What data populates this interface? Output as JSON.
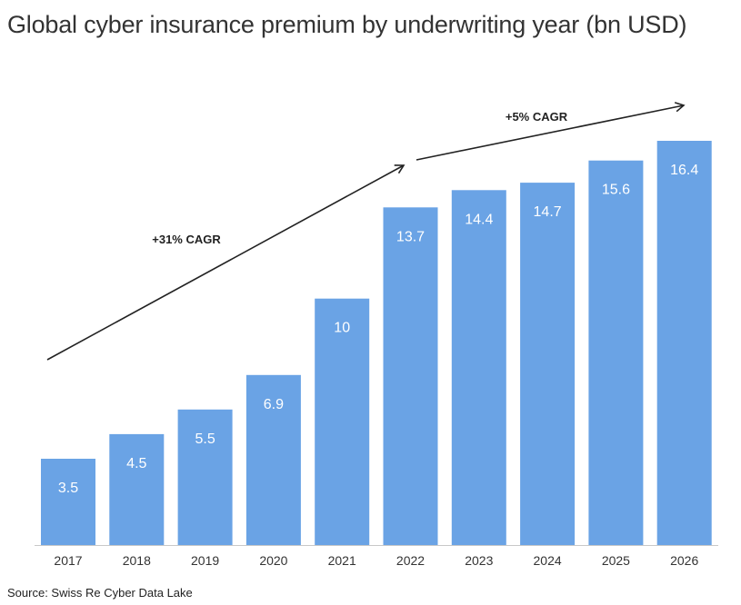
{
  "chart_data": {
    "type": "bar",
    "title": "Global cyber insurance premium by underwriting year (bn USD)",
    "categories": [
      "2017",
      "2018",
      "2019",
      "2020",
      "2021",
      "2022",
      "2023",
      "2024",
      "2025",
      "2026"
    ],
    "values": [
      3.5,
      4.5,
      5.5,
      6.9,
      10,
      13.7,
      14.4,
      14.7,
      15.6,
      16.4
    ],
    "value_labels": [
      "3.5",
      "4.5",
      "5.5",
      "6.9",
      "10",
      "13.7",
      "14.4",
      "14.7",
      "15.6",
      "16.4"
    ],
    "xlabel": "",
    "ylabel": "",
    "ylim": [
      0,
      16.4
    ],
    "grid": false,
    "bar_color": "#6aa3e5",
    "annotations": [
      {
        "text": "+31% CAGR",
        "from_category": "2017",
        "to_category": "2022"
      },
      {
        "text": "+5% CAGR",
        "from_category": "2022",
        "to_category": "2026"
      }
    ],
    "source": "Source: Swiss Re Cyber Data Lake"
  }
}
